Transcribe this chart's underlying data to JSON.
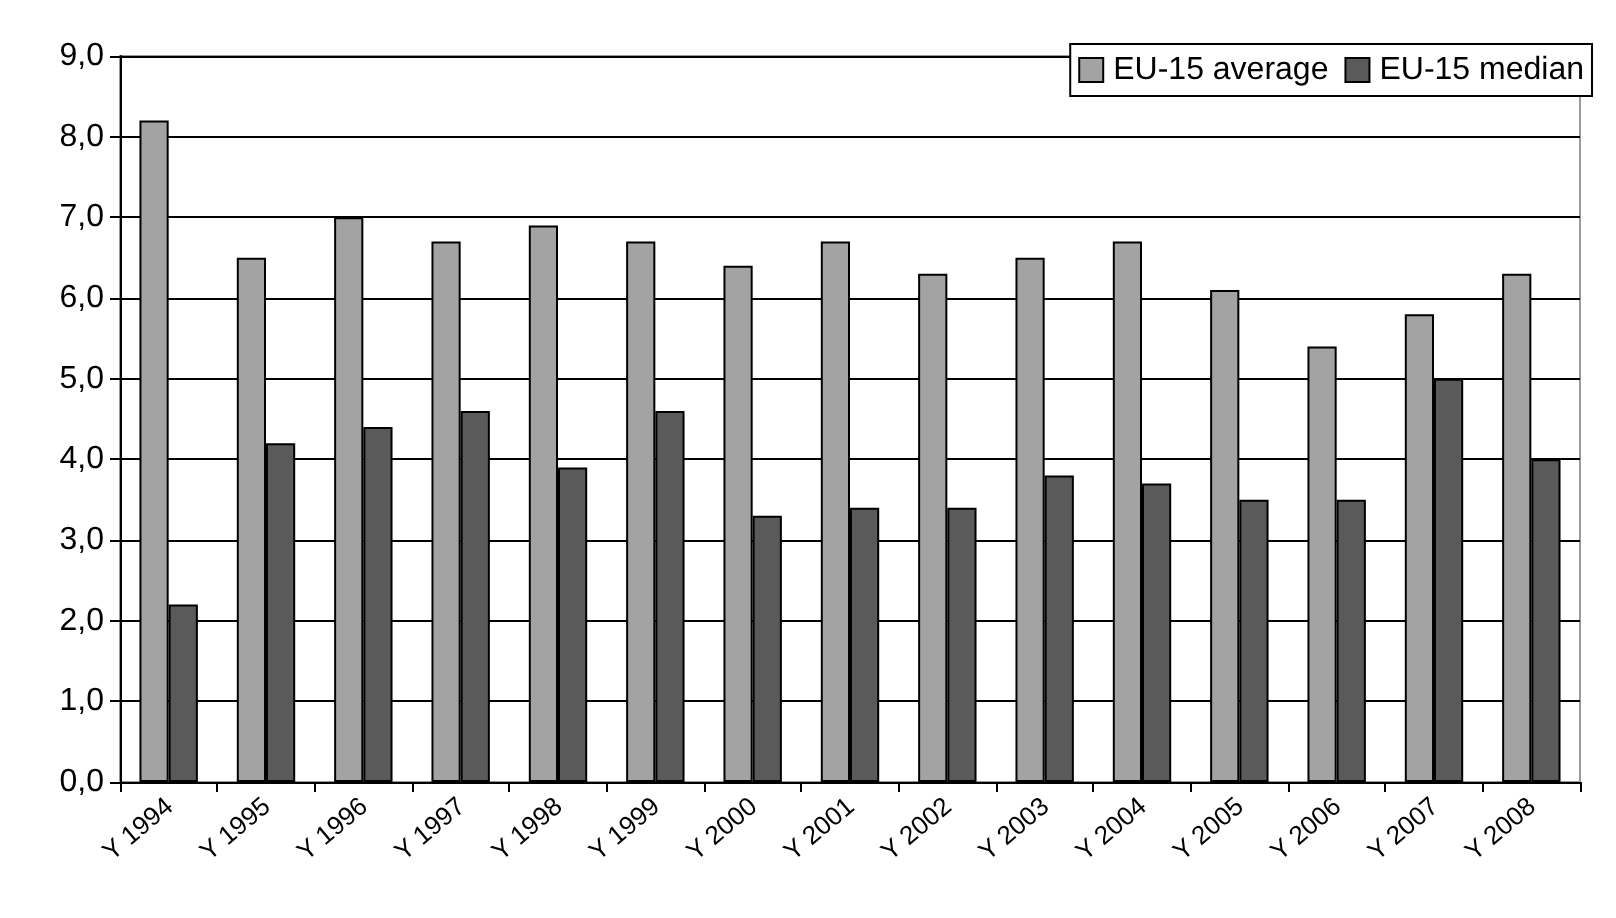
{
  "chart_data": {
    "type": "bar",
    "categories": [
      "Y 1994",
      "Y 1995",
      "Y 1996",
      "Y 1997",
      "Y 1998",
      "Y 1999",
      "Y 2000",
      "Y 2001",
      "Y 2002",
      "Y 2003",
      "Y 2004",
      "Y 2005",
      "Y 2006",
      "Y 2007",
      "Y 2008"
    ],
    "series": [
      {
        "name": "EU-15 average",
        "color": "#a3a3a3",
        "values": [
          8.2,
          6.5,
          7.0,
          6.7,
          6.9,
          6.7,
          6.4,
          6.7,
          6.3,
          6.5,
          6.7,
          6.1,
          5.4,
          5.8,
          6.3
        ]
      },
      {
        "name": "EU-15 median",
        "color": "#5a5a5a",
        "values": [
          2.2,
          4.2,
          4.4,
          4.6,
          3.9,
          4.6,
          3.3,
          3.4,
          3.4,
          3.8,
          3.7,
          3.5,
          3.5,
          5.0,
          4.0
        ]
      }
    ],
    "ylim": [
      0,
      9
    ],
    "yticks": [
      {
        "value": 0,
        "label": "0,0"
      },
      {
        "value": 1,
        "label": "1,0"
      },
      {
        "value": 2,
        "label": "2,0"
      },
      {
        "value": 3,
        "label": "3,0"
      },
      {
        "value": 4,
        "label": "4,0"
      },
      {
        "value": 5,
        "label": "5,0"
      },
      {
        "value": 6,
        "label": "6,0"
      },
      {
        "value": 7,
        "label": "7,0"
      },
      {
        "value": 8,
        "label": "8,0"
      },
      {
        "value": 9,
        "label": "9,0"
      }
    ],
    "grid": "y",
    "legend": "top right"
  }
}
